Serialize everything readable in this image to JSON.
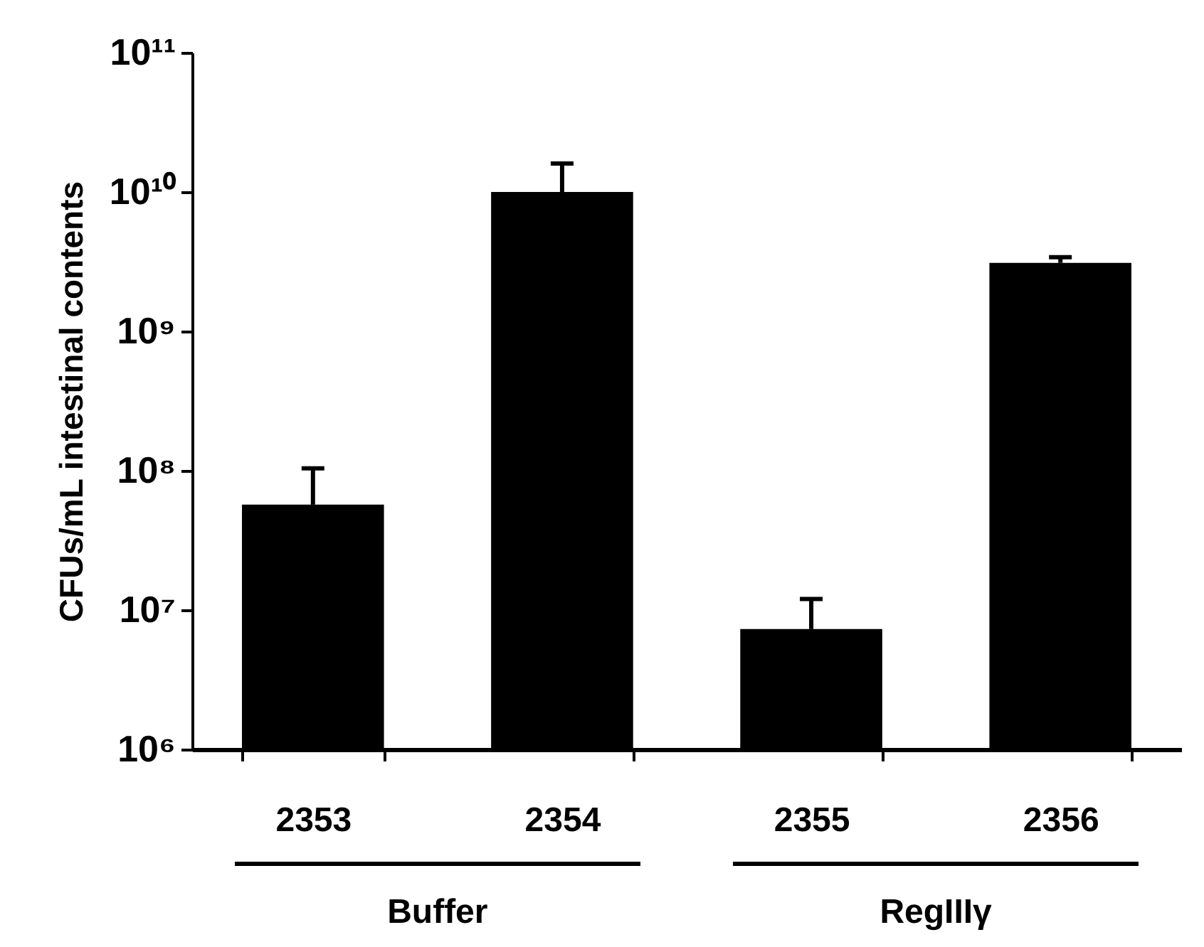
{
  "chart_data": {
    "type": "bar",
    "ylabel": "CFUs/mL intestinal contents",
    "categories": [
      "2353",
      "2354",
      "2355",
      "2356"
    ],
    "values": [
      57000000.0,
      10000000000.0,
      7300000.0,
      3100000000.0
    ],
    "errors": [
      [
        57000000.0,
        104000000.0
      ],
      [
        10000000000.0,
        16000000000.0
      ],
      [
        7300000.0,
        12000000.0
      ],
      [
        3100000000.0,
        3400000000.0
      ]
    ],
    "color": "#000000",
    "log": true,
    "ylim": [
      1000000.0,
      100000000000.0
    ],
    "yticks": [
      {
        "value": 1000000.0,
        "label": "10⁶"
      },
      {
        "value": 10000000.0,
        "label": "10⁷"
      },
      {
        "value": 100000000.0,
        "label": "10⁸"
      },
      {
        "value": 1000000000.0,
        "label": "10⁹"
      },
      {
        "value": 10000000000.0,
        "label": "10¹⁰"
      },
      {
        "value": 100000000000.0,
        "label": "10¹¹"
      }
    ],
    "grid": false,
    "annotations": [
      "Buffer",
      "RegIIIγ"
    ]
  }
}
